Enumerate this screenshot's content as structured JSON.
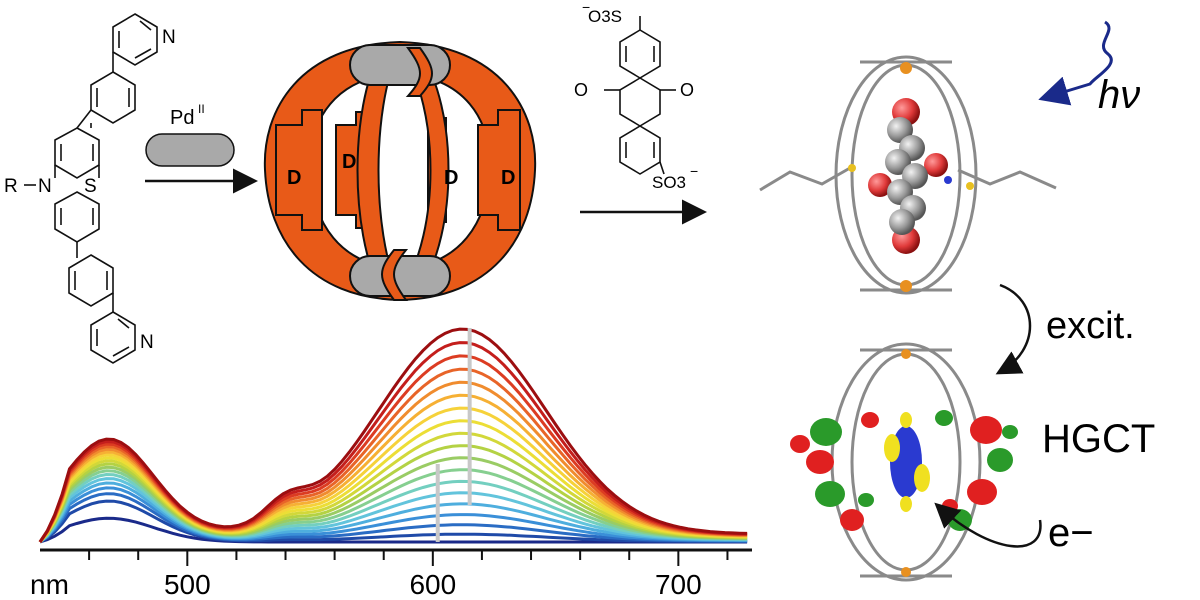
{
  "ligand": {
    "r_group": "R",
    "n_atom": "N",
    "s_atom": "S",
    "pyridine_n_top": "N",
    "pyridine_n_bottom": "N"
  },
  "step1": {
    "metal_label": "Pd",
    "metal_oxidation": "II"
  },
  "cage": {
    "donor_label": "D",
    "cage_color": "#e85a18",
    "metal_color": "#a9a9a9"
  },
  "guest": {
    "sulfonate_top": "O3S",
    "sulfonate_bottom": "SO3",
    "carbonyl_o": "O",
    "charge": "−"
  },
  "photo": {
    "label": "hν",
    "wave_color": "#1a2a8a"
  },
  "arrow_excit": {
    "label": "excit."
  },
  "hgct": {
    "label": "HGCT",
    "electron_label": "e−"
  },
  "spectrum": {
    "axis_unit_label": "nm",
    "x_ticks": [
      "500",
      "600",
      "700"
    ],
    "series_colors": [
      "#1a2a8a",
      "#1f4aa8",
      "#2a6cc4",
      "#3a8fd8",
      "#4eaede",
      "#62c4dc",
      "#73cfc0",
      "#86cf90",
      "#9acc64",
      "#b4d244",
      "#d2d83a",
      "#ecde36",
      "#f6d23a",
      "#f6b034",
      "#f08c2e",
      "#e86428",
      "#dc3c22",
      "#c41e1c",
      "#9c0e10"
    ],
    "marker_positions_nm": [
      602,
      615
    ]
  }
}
